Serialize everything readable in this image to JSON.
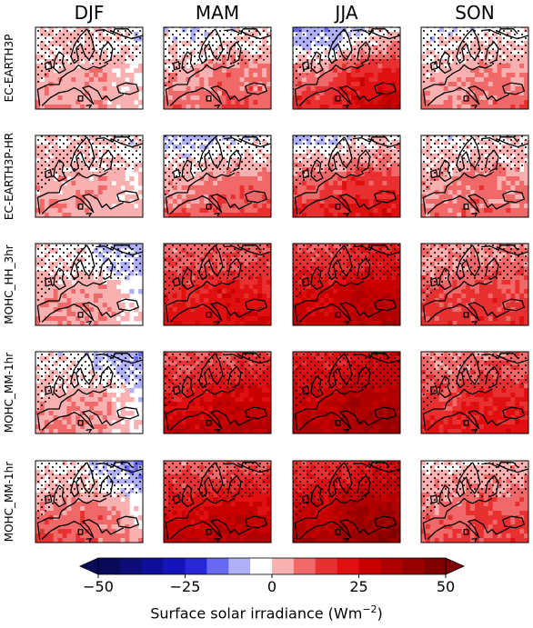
{
  "figure": {
    "seasons": [
      "DJF",
      "MAM",
      "JJA",
      "SON"
    ],
    "models": [
      "EC-EARTH3P",
      "EC-EARTH3P-HR",
      "MOHC_HH_3hr",
      "MOHC_MM-1hr",
      "MOHC_MM-1hr"
    ]
  },
  "colorbar": {
    "label_text": "Surface solar irradiance (Wm",
    "label_exp": "−2",
    "label_close": ")",
    "ticks": [
      "−50",
      "−25",
      "0",
      "25",
      "50"
    ],
    "tick_values": [
      -50,
      -25,
      0,
      25,
      50
    ],
    "range": [
      -50,
      50
    ],
    "extend": "both",
    "colors": [
      "#0a0a5a",
      "#0d0d7a",
      "#0e0e9a",
      "#1414b8",
      "#2828d8",
      "#6868f0",
      "#b0b0f8",
      "#ffffff",
      "#f8b0b0",
      "#f06868",
      "#e83030",
      "#e01010",
      "#c80000",
      "#b00000",
      "#980000",
      "#800000"
    ]
  },
  "chart_data": {
    "type": "heatmap",
    "title": "",
    "variable": "Surface solar irradiance",
    "units": "Wm-2",
    "columns": [
      "DJF",
      "MAM",
      "JJA",
      "SON"
    ],
    "rows": [
      "EC-EARTH3P",
      "EC-EARTH3P-HR",
      "MOHC_HH_3hr",
      "MOHC_MM-1hr",
      "MOHC_MM-1hr"
    ],
    "stippling": "hatched dots over most of the northern domain",
    "panels": [
      {
        "row": "EC-EARTH3P",
        "season": "DJF",
        "north": 0,
        "south": 5,
        "east": -3,
        "max": 8
      },
      {
        "row": "EC-EARTH3P",
        "season": "MAM",
        "north": -5,
        "south": 10,
        "east": 7,
        "max": 14
      },
      {
        "row": "EC-EARTH3P",
        "season": "JJA",
        "north": -12,
        "south": 20,
        "east": 22,
        "max": 28
      },
      {
        "row": "EC-EARTH3P",
        "season": "SON",
        "north": -4,
        "south": 8,
        "east": 6,
        "max": 12
      },
      {
        "row": "EC-EARTH3P-HR",
        "season": "DJF",
        "north": 0,
        "south": 5,
        "east": -2,
        "max": 7
      },
      {
        "row": "EC-EARTH3P-HR",
        "season": "MAM",
        "north": -8,
        "south": 12,
        "east": 8,
        "max": 15
      },
      {
        "row": "EC-EARTH3P-HR",
        "season": "JJA",
        "north": -6,
        "south": 20,
        "east": 14,
        "max": 24
      },
      {
        "row": "EC-EARTH3P-HR",
        "season": "SON",
        "north": -3,
        "south": 10,
        "east": 5,
        "max": 14
      },
      {
        "row": "MOHC_HH_3hr",
        "season": "DJF",
        "north": -3,
        "south": 8,
        "east": -8,
        "max": 10
      },
      {
        "row": "MOHC_HH_3hr",
        "season": "MAM",
        "north": 8,
        "south": 24,
        "east": 20,
        "max": 26
      },
      {
        "row": "MOHC_HH_3hr",
        "season": "JJA",
        "north": 12,
        "south": 30,
        "east": 30,
        "max": 36
      },
      {
        "row": "MOHC_HH_3hr",
        "season": "SON",
        "north": 4,
        "south": 16,
        "east": 12,
        "max": 18
      },
      {
        "row": "MOHC_MM-1hr",
        "season": "DJF",
        "north": -3,
        "south": 8,
        "east": -8,
        "max": 10
      },
      {
        "row": "MOHC_MM-1hr",
        "season": "MAM",
        "north": 10,
        "south": 30,
        "east": 26,
        "max": 34
      },
      {
        "row": "MOHC_MM-1hr",
        "season": "JJA",
        "north": 18,
        "south": 34,
        "east": 36,
        "max": 40
      },
      {
        "row": "MOHC_MM-1hr",
        "season": "SON",
        "north": 6,
        "south": 20,
        "east": 18,
        "max": 24
      },
      {
        "row": "MOHC_MM-1hr",
        "season": "DJF",
        "north": -3,
        "south": 14,
        "east": -8,
        "max": 16
      },
      {
        "row": "MOHC_MM-1hr",
        "season": "MAM",
        "north": 8,
        "south": 32,
        "east": 24,
        "max": 36
      },
      {
        "row": "MOHC_MM-1hr",
        "season": "JJA",
        "north": 14,
        "south": 36,
        "east": 38,
        "max": 44
      },
      {
        "row": "MOHC_MM-1hr",
        "season": "SON",
        "north": 0,
        "south": 14,
        "east": 10,
        "max": 18
      }
    ]
  }
}
